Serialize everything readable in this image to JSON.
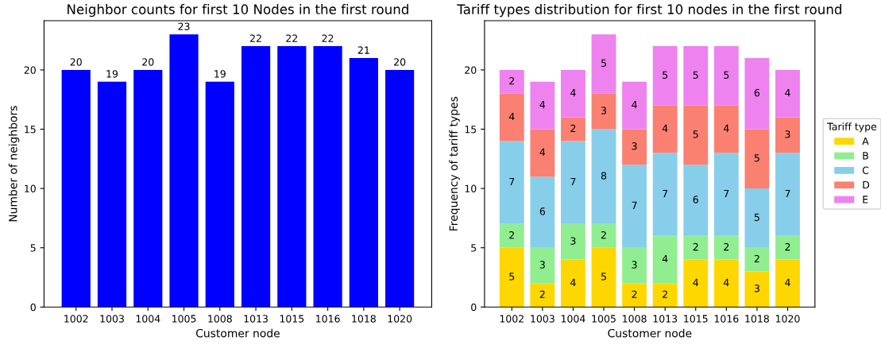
{
  "chart_data": [
    {
      "type": "bar",
      "title": "Neighbor counts for first 10 Nodes in the first round",
      "xlabel": "Customer node",
      "ylabel": "Number of neighbors",
      "categories": [
        "1002",
        "1003",
        "1004",
        "1005",
        "1008",
        "1013",
        "1015",
        "1016",
        "1018",
        "1020"
      ],
      "values": [
        20,
        19,
        20,
        23,
        19,
        22,
        22,
        22,
        21,
        20
      ],
      "color": "#0000ff",
      "ylim": [
        0,
        24.15
      ],
      "yticks": [
        0,
        5,
        10,
        15,
        20
      ],
      "data_labels": true
    },
    {
      "type": "bar",
      "title": "Tariff types distribution for first 10 nodes in the first round",
      "xlabel": "Customer node",
      "ylabel": "Frequency of tariff types",
      "legend_title": "Tariff type",
      "categories": [
        "1002",
        "1003",
        "1004",
        "1005",
        "1008",
        "1013",
        "1015",
        "1016",
        "1018",
        "1020"
      ],
      "stacked": true,
      "data_labels": true,
      "legend": "right",
      "ylim": [
        0,
        24.15
      ],
      "yticks": [
        0,
        5,
        10,
        15,
        20
      ],
      "series": [
        {
          "name": "A",
          "color": "#ffd700",
          "values": [
            5,
            2,
            4,
            5,
            2,
            2,
            4,
            4,
            3,
            4
          ]
        },
        {
          "name": "B",
          "color": "#90ee90",
          "values": [
            2,
            3,
            3,
            2,
            3,
            4,
            2,
            2,
            2,
            2
          ]
        },
        {
          "name": "C",
          "color": "#87ceeb",
          "values": [
            7,
            6,
            7,
            8,
            7,
            7,
            6,
            7,
            5,
            7
          ]
        },
        {
          "name": "D",
          "color": "#fa8072",
          "values": [
            4,
            4,
            2,
            3,
            3,
            4,
            5,
            4,
            5,
            3
          ]
        },
        {
          "name": "E",
          "color": "#ee82ee",
          "values": [
            2,
            4,
            4,
            5,
            4,
            5,
            5,
            5,
            6,
            4
          ]
        }
      ]
    }
  ]
}
